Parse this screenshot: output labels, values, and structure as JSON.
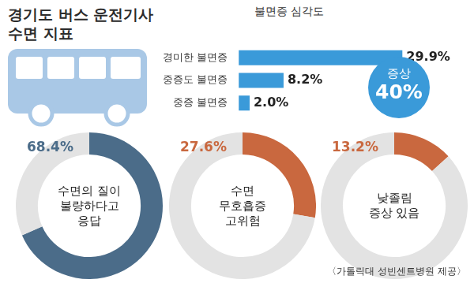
{
  "title": [
    "경기도 버스 운전기사",
    "수면 지표"
  ],
  "source": "〈가톨릭대 성빈센트병원 제공〉",
  "chart_data": [
    {
      "type": "bar",
      "title": "불면증 심각도",
      "orientation": "horizontal",
      "categories": [
        "경미한 불면증",
        "중증도 불면증",
        "중증 불면증"
      ],
      "values": [
        29.9,
        8.2,
        2.0
      ],
      "value_labels": [
        "29.9%",
        "8.2%",
        "2.0%"
      ],
      "color": "#3a9ad9",
      "xlim": [
        0,
        30
      ],
      "data_labels": true,
      "tick_labels": "y",
      "grid": false,
      "annotations": [
        "증상",
        "40%"
      ]
    },
    {
      "type": "doughnut",
      "title": [
        "수면의 질이",
        "불량하다고",
        "응답"
      ],
      "values": [
        68.4,
        31.6
      ],
      "value_labels": [
        "68.4%",
        null
      ],
      "colors": [
        "#4b6c89",
        "#e3e3e3"
      ],
      "data_labels": true
    },
    {
      "type": "doughnut",
      "title": [
        "수면",
        "무호흡증",
        "고위험"
      ],
      "values": [
        27.6,
        72.4
      ],
      "value_labels": [
        "27.6%",
        null
      ],
      "colors": [
        "#c9683f",
        "#e3e3e3"
      ],
      "data_labels": true
    },
    {
      "type": "doughnut",
      "title": [
        "낮졸림",
        "증상 있음"
      ],
      "values": [
        13.2,
        86.8
      ],
      "value_labels": [
        "13.2%",
        null
      ],
      "colors": [
        "#c9683f",
        "#e3e3e3"
      ],
      "data_labels": true
    }
  ]
}
